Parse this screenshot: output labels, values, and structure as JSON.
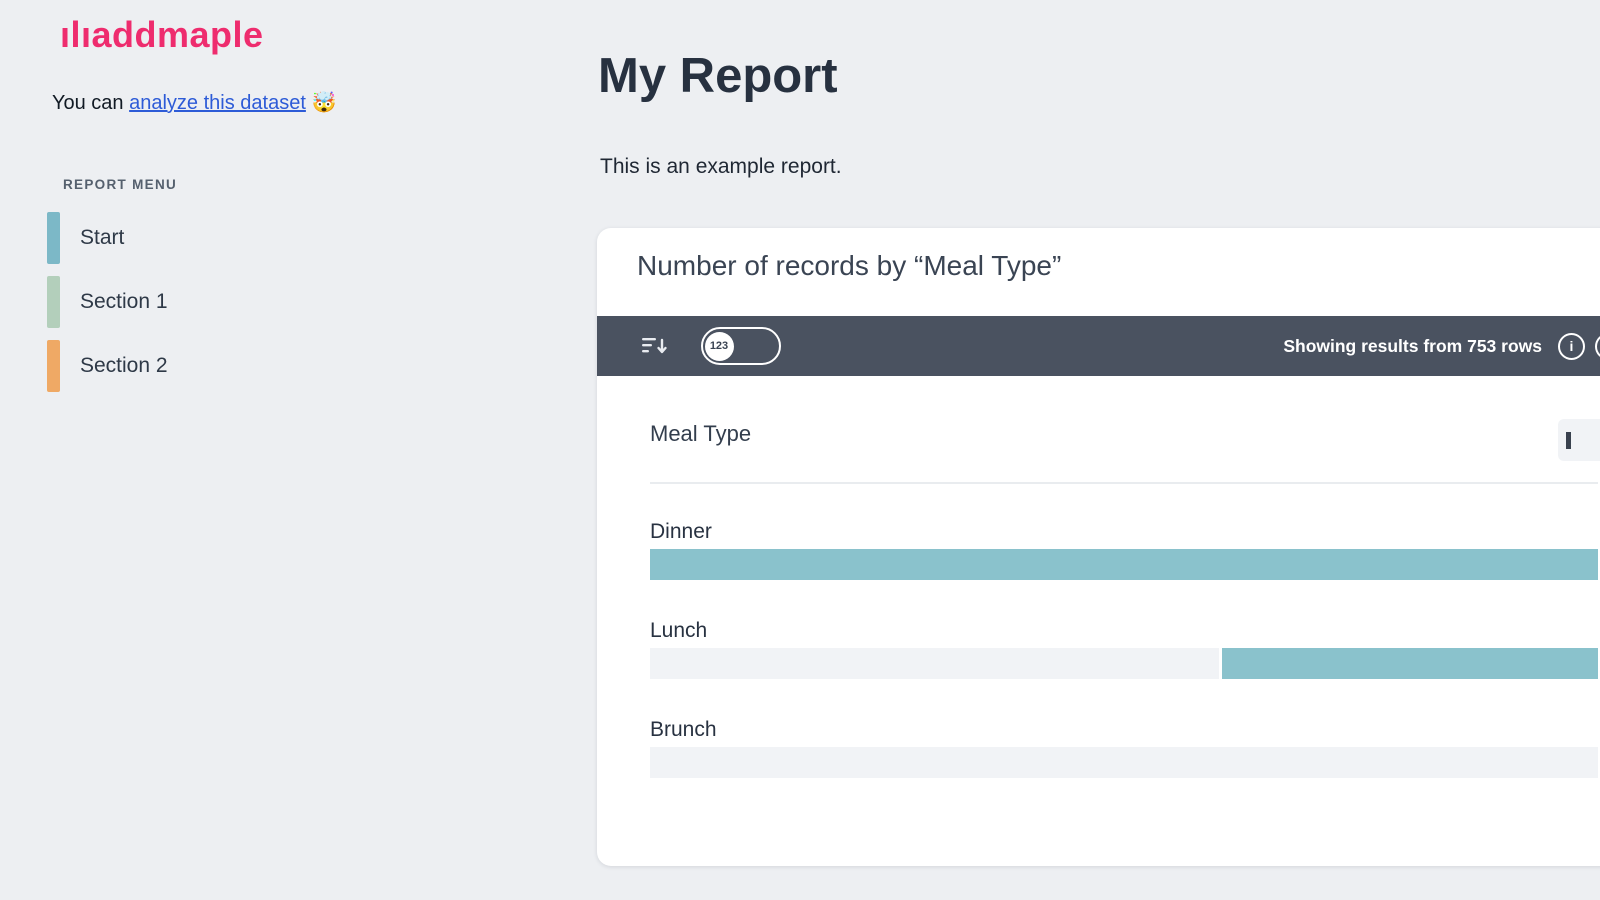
{
  "brand": {
    "logo_text": "ılıaddmaple"
  },
  "sidebar": {
    "tagline": {
      "prefix": "You can ",
      "link_text": "analyze this dataset",
      "emoji": "🤯"
    },
    "menu_title": "REPORT MENU",
    "items": [
      {
        "label": "Start",
        "color": "#7cb8c7"
      },
      {
        "label": "Section 1",
        "color": "#b3cfbb"
      },
      {
        "label": "Section 2",
        "color": "#efa965"
      }
    ]
  },
  "main": {
    "title": "My Report",
    "subtitle": "This is an example report."
  },
  "card": {
    "title": "Number of records by “Meal Type”",
    "toolbar": {
      "toggle_label": "123",
      "status_text": "Showing results from 753 rows",
      "info_glyph": "i"
    },
    "column_header": "Meal Type"
  },
  "chart_data": {
    "type": "bar",
    "orientation": "horizontal",
    "title": "Number of records by “Meal Type”",
    "categories": [
      "Dinner",
      "Lunch",
      "Brunch"
    ],
    "fill_percent_of_max": [
      100,
      40,
      0
    ],
    "total_rows": 753,
    "bar_color": "#8ac2cc",
    "track_color": "#f1f3f6",
    "legend": "none",
    "note": "Bars are right-anchored fills over a gray track; exact per-category counts are not displayed in the UI, percentages estimated from pixels."
  },
  "colors": {
    "brand-pink": "#ee2c6e",
    "link-blue": "#2d5bd7",
    "toolbar-bg": "#4a5260",
    "accent-teal": "#8ac2cc",
    "track-gray": "#f1f3f6",
    "page-bg": "#edeff2"
  }
}
